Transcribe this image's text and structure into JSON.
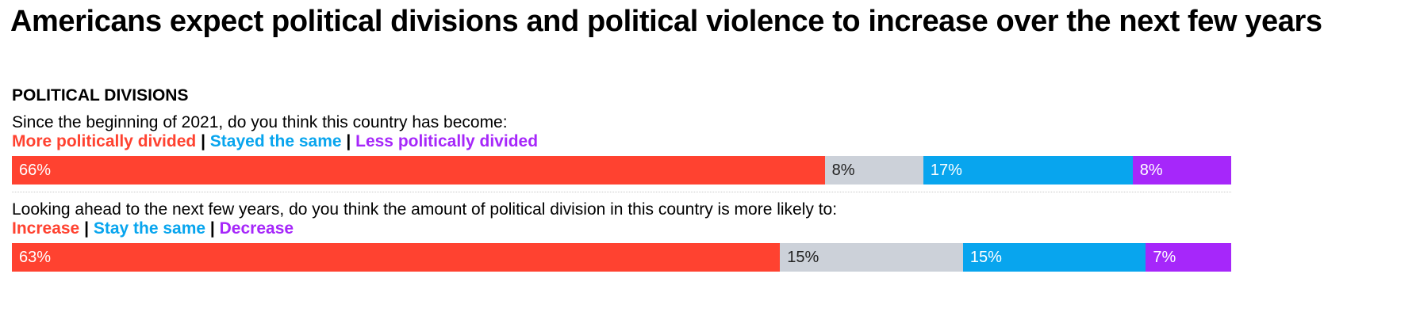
{
  "title": "Americans expect political divisions and political violence to increase over the next few years",
  "section_label": "POLITICAL DIVISIONS",
  "colors": {
    "red": "#ff4230",
    "gray": "#ccd1d9",
    "blue": "#08a5ee",
    "purple": "#a627fa"
  },
  "chart_data": {
    "type": "bar",
    "orientation": "horizontal-stacked-100",
    "rows": [
      {
        "question": "Since the beginning of 2021, do you think this country has become:",
        "legend": [
          {
            "label": "More politically divided",
            "color": "#ff4230"
          },
          {
            "label": "Stayed the same",
            "color": "#08a5ee"
          },
          {
            "label": "Less politically divided",
            "color": "#a627fa"
          }
        ],
        "segments": [
          {
            "value": 66,
            "label": "66%",
            "color": "#ff4230",
            "text_color": "#ffffff"
          },
          {
            "value": 8,
            "label": "8%",
            "color": "#ccd1d9",
            "text_color": "#222222"
          },
          {
            "value": 17,
            "label": "17%",
            "color": "#08a5ee",
            "text_color": "#ffffff"
          },
          {
            "value": 8,
            "label": "8%",
            "color": "#a627fa",
            "text_color": "#ffffff"
          }
        ]
      },
      {
        "question": "Looking ahead to the next few years, do you think the amount of political division in this country is more likely to:",
        "legend": [
          {
            "label": "Increase",
            "color": "#ff4230"
          },
          {
            "label": "Stay the same",
            "color": "#08a5ee"
          },
          {
            "label": "Decrease",
            "color": "#a627fa"
          }
        ],
        "segments": [
          {
            "value": 63,
            "label": "63%",
            "color": "#ff4230",
            "text_color": "#ffffff"
          },
          {
            "value": 15,
            "label": "15%",
            "color": "#ccd1d9",
            "text_color": "#222222"
          },
          {
            "value": 15,
            "label": "15%",
            "color": "#08a5ee",
            "text_color": "#ffffff"
          },
          {
            "value": 7,
            "label": "7%",
            "color": "#a627fa",
            "text_color": "#ffffff"
          }
        ]
      }
    ]
  }
}
